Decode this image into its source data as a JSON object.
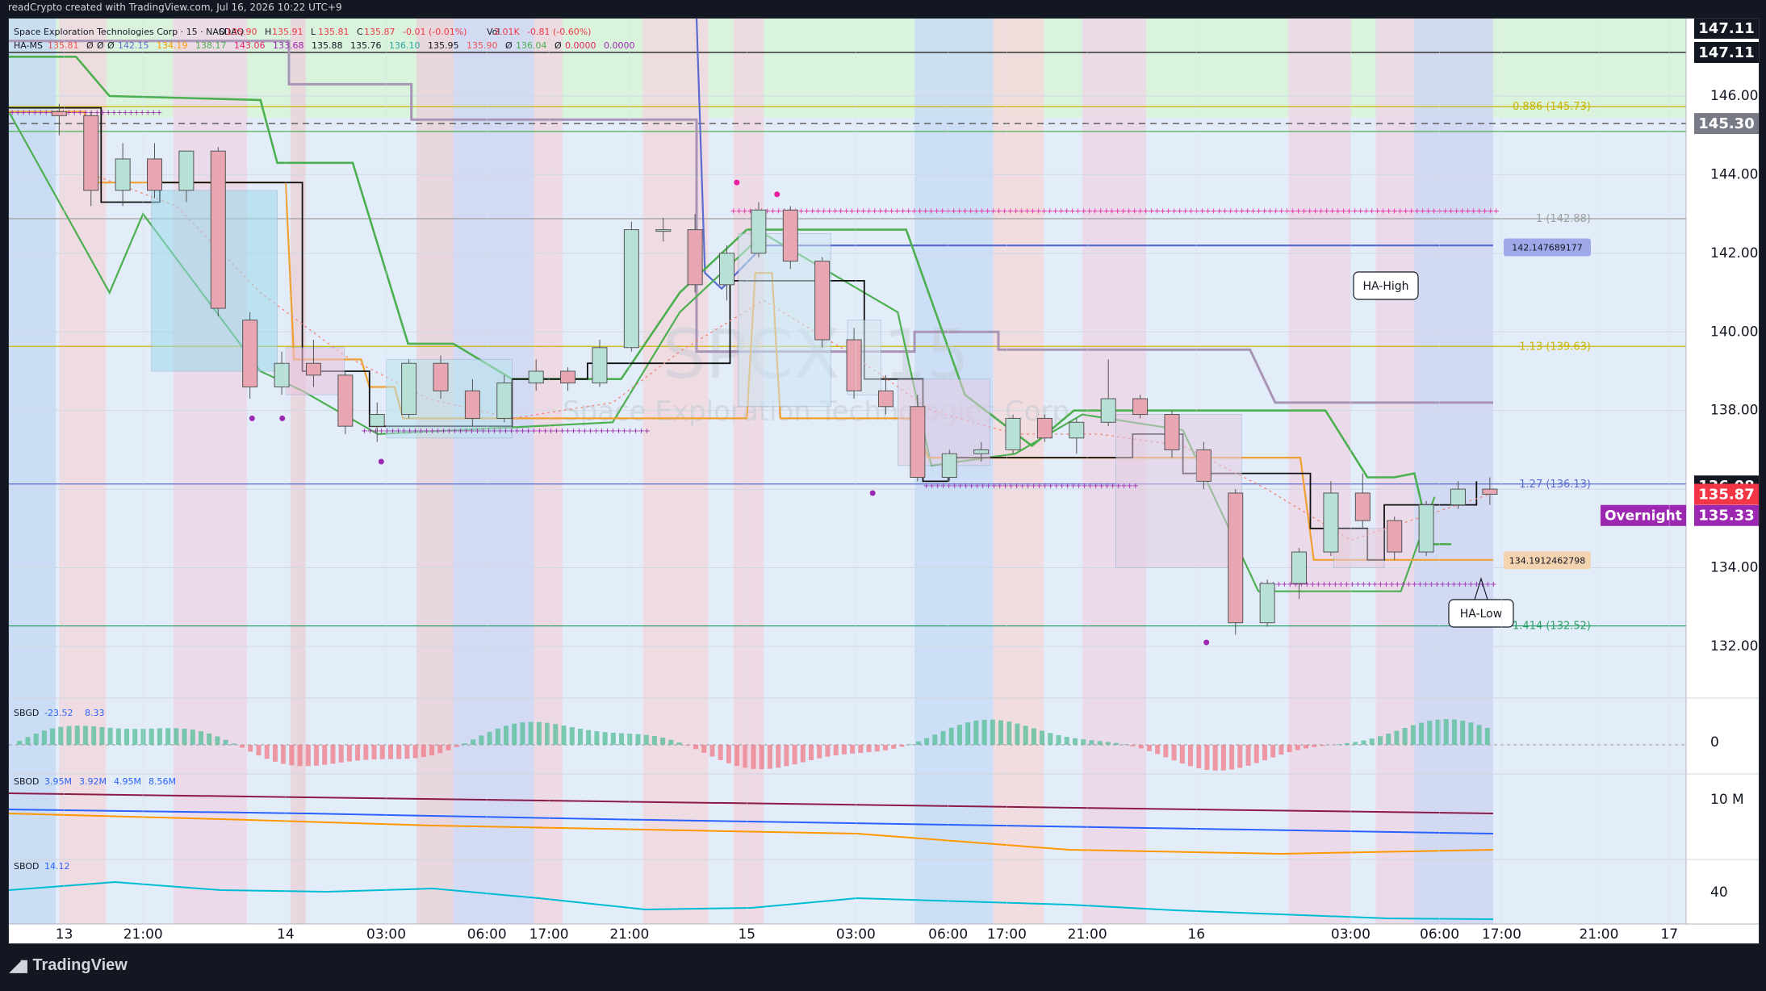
{
  "caption": "readCrypto created with TradingView.com, Jul 16, 2026 10:22 UTC+9",
  "branding": "TradingView",
  "legend": {
    "line1": "Space Exploration Technologies Corp · 15 · NASDAQ",
    "line1_values": [
      {
        "label": "O",
        "value": "135.90"
      },
      {
        "label": "H",
        "value": "135.91"
      },
      {
        "label": "L",
        "value": "135.81"
      },
      {
        "label": "C",
        "value": "135.87"
      },
      {
        "label": "",
        "value": "-0.01 (-0.01%)"
      },
      {
        "label": "Vol",
        "value": "2.01K"
      },
      {
        "label": "",
        "value": "-0.81 (-0.60%)"
      }
    ],
    "line2_name": "HA-MS",
    "line2_values": [
      "135.81",
      "Ø",
      "Ø",
      "Ø",
      "142.15",
      "134.19",
      "138.17",
      "143.06",
      "133.68",
      "135.88",
      "135.76",
      "136.10",
      "135.95",
      "135.90",
      "Ø",
      "136.04",
      "Ø",
      "0.0000",
      "0.0000"
    ],
    "watermark_ticker": "SPCX, 15",
    "watermark_name": "Space Exploration Technologies Corp"
  },
  "colors": {
    "up": "#26a69a",
    "down": "#ef5350",
    "fib_green": "#8bc34a",
    "fib_yellow": "#c8b400",
    "fib_teal": "#2e9e6a",
    "ha_high": "#5b6cd1",
    "ha_low": "#f0a030",
    "green_line": "#4caf50",
    "orange_line": "#ff9800",
    "magenta_dots": "#e91ea0",
    "purple_dots": "#9c27b0",
    "overnight": "#9c27b0",
    "price_red": "#f23645",
    "label_dark": "#131722",
    "label_gray": "#787b86"
  },
  "price_axis": {
    "ticks": [
      "147.11",
      "146.00",
      "144.00",
      "142.00",
      "140.00",
      "138.00",
      "136.00",
      "134.00",
      "132.00"
    ],
    "labels": [
      {
        "text": "147.11",
        "value": 147.55,
        "style": "dark"
      },
      {
        "text": "147.11",
        "value": 147.11,
        "style": "dark"
      },
      {
        "text": "145.30",
        "value": 145.3,
        "style": "gray"
      },
      {
        "text": "136.08",
        "value": 136.08,
        "style": "dark"
      },
      {
        "text": "135.87",
        "value": 135.87,
        "style": "red"
      },
      {
        "text": "135.33",
        "value": 135.33,
        "style": "purple"
      }
    ],
    "overnight_label": "Overnight"
  },
  "fib_levels": [
    {
      "label": "0.886 (145.73)",
      "value": 145.73,
      "color": "#c8b400"
    },
    {
      "label": "1 (142.88)",
      "value": 142.88,
      "color": "#9e9e9e"
    },
    {
      "label": "1.13 (139.63)",
      "value": 139.63,
      "color": "#c8b400"
    },
    {
      "label": "1.27 (136.13)",
      "value": 136.13,
      "color": "#5b6cd1"
    },
    {
      "label": "1.414 (132.52)",
      "value": 132.52,
      "color": "#2e9e6a"
    }
  ],
  "annotations": {
    "ha_high": "HA-High",
    "ha_low": "HA-Low",
    "ha_high_price": "142.147689177",
    "ha_low_price": "134.1912462798"
  },
  "time_axis": [
    "13",
    "21:00",
    "14",
    "03:00",
    "06:00",
    "17:00",
    "21:00",
    "15",
    "03:00",
    "06:00",
    "17:00",
    "21:00",
    "16",
    "03:00",
    "06:00",
    "17:00",
    "21:00",
    "17"
  ],
  "panes": [
    {
      "name": "SBGD",
      "values": [
        "-23.52",
        "8.33"
      ],
      "axis": "0"
    },
    {
      "name": "SBOD",
      "values": [
        "3.95M",
        "3.92M",
        "4.95M",
        "8.56M"
      ],
      "axis": "10 M"
    },
    {
      "name": "SBOD",
      "values": [
        "14.12"
      ],
      "axis": "40"
    }
  ],
  "chart_data": {
    "type": "candlestick",
    "title": "SPCX, 15",
    "ylim": [
      131.0,
      148.0
    ],
    "last_close": 135.87,
    "overnight": 135.33,
    "ohlc_approx": [
      [
        145.6,
        145.8,
        145.0,
        145.5
      ],
      [
        145.5,
        145.6,
        143.2,
        143.6
      ],
      [
        143.6,
        144.8,
        143.2,
        144.4
      ],
      [
        144.4,
        144.8,
        143.4,
        143.6
      ],
      [
        143.6,
        144.6,
        143.3,
        144.6
      ],
      [
        144.6,
        144.7,
        140.4,
        140.6
      ],
      [
        140.3,
        140.5,
        138.3,
        138.6
      ],
      [
        138.6,
        139.5,
        138.4,
        139.2
      ],
      [
        139.2,
        139.8,
        138.6,
        138.9
      ],
      [
        138.9,
        139.0,
        137.4,
        137.6
      ],
      [
        137.6,
        138.2,
        137.2,
        137.9
      ],
      [
        137.9,
        139.3,
        137.8,
        139.2
      ],
      [
        139.2,
        139.4,
        138.3,
        138.5
      ],
      [
        138.5,
        138.8,
        137.6,
        137.8
      ],
      [
        137.8,
        138.9,
        137.7,
        138.7
      ],
      [
        138.7,
        139.3,
        138.5,
        139.0
      ],
      [
        139.0,
        139.1,
        138.5,
        138.7
      ],
      [
        138.7,
        139.8,
        138.6,
        139.6
      ],
      [
        139.6,
        142.8,
        139.5,
        142.6
      ],
      [
        142.6,
        142.9,
        142.3,
        142.6
      ],
      [
        142.6,
        143.0,
        141.0,
        141.2
      ],
      [
        141.2,
        142.2,
        140.8,
        142.0
      ],
      [
        142.0,
        143.3,
        141.9,
        143.1
      ],
      [
        143.1,
        143.2,
        141.6,
        141.8
      ],
      [
        141.8,
        141.9,
        139.6,
        139.8
      ],
      [
        139.8,
        140.1,
        138.3,
        138.5
      ],
      [
        138.5,
        138.9,
        137.9,
        138.1
      ],
      [
        138.1,
        138.4,
        136.2,
        136.3
      ],
      [
        136.3,
        137.0,
        136.2,
        136.9
      ],
      [
        136.9,
        137.2,
        136.7,
        137.0
      ],
      [
        137.0,
        137.9,
        136.9,
        137.8
      ],
      [
        137.8,
        137.9,
        137.2,
        137.3
      ],
      [
        137.3,
        137.8,
        136.9,
        137.7
      ],
      [
        137.7,
        139.3,
        137.6,
        138.3
      ],
      [
        138.3,
        138.4,
        137.8,
        137.9
      ],
      [
        137.9,
        138.0,
        136.8,
        137.0
      ],
      [
        137.0,
        137.2,
        136.0,
        136.2
      ],
      [
        135.9,
        136.0,
        132.3,
        132.6
      ],
      [
        132.6,
        133.7,
        132.5,
        133.6
      ],
      [
        133.6,
        134.5,
        133.2,
        134.4
      ],
      [
        134.4,
        136.2,
        134.3,
        135.9
      ],
      [
        135.9,
        136.4,
        135.0,
        135.2
      ],
      [
        135.2,
        135.3,
        134.2,
        134.4
      ],
      [
        134.4,
        135.7,
        134.3,
        135.6
      ],
      [
        135.6,
        136.2,
        135.5,
        136.0
      ],
      [
        136.0,
        136.3,
        135.6,
        135.87
      ]
    ]
  }
}
